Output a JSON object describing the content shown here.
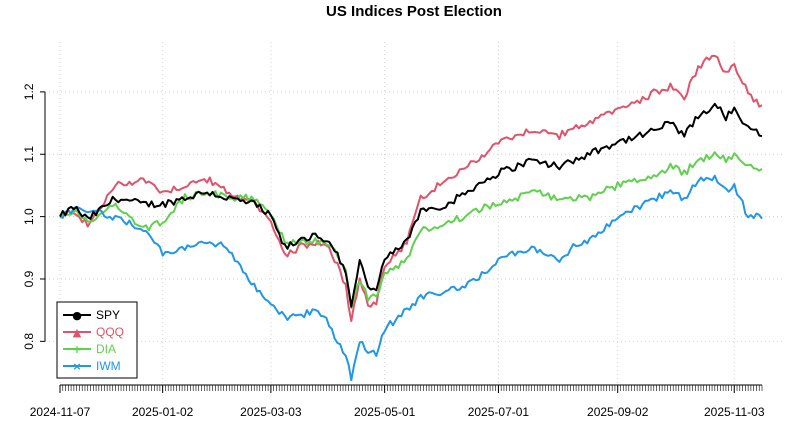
{
  "chart_data": {
    "type": "line",
    "title": "US Indices Post Election",
    "xlabel": "",
    "ylabel": "",
    "ylim": [
      0.73,
      1.28
    ],
    "yticks": [
      "0.8",
      "0.9",
      "1.0",
      "1.1",
      "1.2"
    ],
    "ytick_values": [
      0.8,
      0.9,
      1.0,
      1.1,
      1.2
    ],
    "xticks": [
      "2024-11-07",
      "2025-01-02",
      "2025-03-03",
      "2025-05-01",
      "2025-07-01",
      "2025-09-02",
      "2025-11-03"
    ],
    "xtick_index": [
      0,
      37,
      76,
      117,
      158,
      201,
      243
    ],
    "n_points": 254,
    "grid": true,
    "legend_position": "bottom-left",
    "series": [
      {
        "name": "SPY",
        "color": "#000000",
        "marker": "●",
        "anchors": [
          [
            0,
            1.0
          ],
          [
            5,
            1.015
          ],
          [
            10,
            0.995
          ],
          [
            20,
            1.03
          ],
          [
            30,
            1.02
          ],
          [
            37,
            1.02
          ],
          [
            45,
            1.03
          ],
          [
            53,
            1.04
          ],
          [
            60,
            1.03
          ],
          [
            70,
            1.02
          ],
          [
            76,
            1.0
          ],
          [
            81,
            0.95
          ],
          [
            86,
            0.96
          ],
          [
            92,
            0.97
          ],
          [
            97,
            0.96
          ],
          [
            100,
            0.94
          ],
          [
            103,
            0.91
          ],
          [
            105,
            0.86
          ],
          [
            108,
            0.93
          ],
          [
            111,
            0.89
          ],
          [
            114,
            0.88
          ],
          [
            117,
            0.93
          ],
          [
            125,
            0.96
          ],
          [
            130,
            1.01
          ],
          [
            140,
            1.02
          ],
          [
            150,
            1.05
          ],
          [
            158,
            1.07
          ],
          [
            170,
            1.09
          ],
          [
            180,
            1.08
          ],
          [
            185,
            1.09
          ],
          [
            190,
            1.1
          ],
          [
            201,
            1.12
          ],
          [
            210,
            1.13
          ],
          [
            220,
            1.15
          ],
          [
            225,
            1.13
          ],
          [
            230,
            1.16
          ],
          [
            236,
            1.18
          ],
          [
            240,
            1.16
          ],
          [
            243,
            1.17
          ],
          [
            248,
            1.14
          ],
          [
            254,
            1.13
          ]
        ]
      },
      {
        "name": "QQQ",
        "color": "#df536b",
        "marker": "▲",
        "anchors": [
          [
            0,
            1.0
          ],
          [
            5,
            1.01
          ],
          [
            10,
            0.985
          ],
          [
            20,
            1.05
          ],
          [
            30,
            1.06
          ],
          [
            37,
            1.04
          ],
          [
            45,
            1.05
          ],
          [
            53,
            1.06
          ],
          [
            60,
            1.04
          ],
          [
            70,
            1.02
          ],
          [
            76,
            0.99
          ],
          [
            81,
            0.94
          ],
          [
            86,
            0.95
          ],
          [
            92,
            0.96
          ],
          [
            97,
            0.95
          ],
          [
            100,
            0.92
          ],
          [
            103,
            0.89
          ],
          [
            105,
            0.83
          ],
          [
            108,
            0.9
          ],
          [
            111,
            0.86
          ],
          [
            114,
            0.86
          ],
          [
            117,
            0.92
          ],
          [
            125,
            0.96
          ],
          [
            130,
            1.03
          ],
          [
            140,
            1.06
          ],
          [
            150,
            1.09
          ],
          [
            158,
            1.12
          ],
          [
            170,
            1.14
          ],
          [
            180,
            1.13
          ],
          [
            185,
            1.14
          ],
          [
            190,
            1.15
          ],
          [
            201,
            1.17
          ],
          [
            210,
            1.19
          ],
          [
            220,
            1.21
          ],
          [
            225,
            1.19
          ],
          [
            230,
            1.24
          ],
          [
            236,
            1.26
          ],
          [
            240,
            1.23
          ],
          [
            243,
            1.24
          ],
          [
            248,
            1.2
          ],
          [
            254,
            1.17
          ]
        ]
      },
      {
        "name": "DIA",
        "color": "#61d04f",
        "marker": "+",
        "anchors": [
          [
            0,
            1.0
          ],
          [
            5,
            1.01
          ],
          [
            10,
            0.99
          ],
          [
            20,
            1.02
          ],
          [
            30,
            0.98
          ],
          [
            37,
            0.99
          ],
          [
            45,
            1.03
          ],
          [
            53,
            1.04
          ],
          [
            60,
            1.03
          ],
          [
            70,
            1.03
          ],
          [
            76,
            1.0
          ],
          [
            81,
            0.96
          ],
          [
            86,
            0.96
          ],
          [
            92,
            0.96
          ],
          [
            97,
            0.95
          ],
          [
            100,
            0.94
          ],
          [
            103,
            0.91
          ],
          [
            105,
            0.85
          ],
          [
            108,
            0.9
          ],
          [
            111,
            0.87
          ],
          [
            114,
            0.87
          ],
          [
            117,
            0.91
          ],
          [
            125,
            0.93
          ],
          [
            130,
            0.98
          ],
          [
            140,
            0.99
          ],
          [
            150,
            1.01
          ],
          [
            158,
            1.02
          ],
          [
            170,
            1.04
          ],
          [
            180,
            1.03
          ],
          [
            185,
            1.03
          ],
          [
            190,
            1.03
          ],
          [
            201,
            1.05
          ],
          [
            210,
            1.06
          ],
          [
            220,
            1.08
          ],
          [
            225,
            1.07
          ],
          [
            230,
            1.09
          ],
          [
            236,
            1.1
          ],
          [
            240,
            1.09
          ],
          [
            243,
            1.1
          ],
          [
            248,
            1.08
          ],
          [
            254,
            1.07
          ]
        ]
      },
      {
        "name": "IWM",
        "color": "#2297e6",
        "marker": "×",
        "anchors": [
          [
            0,
            1.0
          ],
          [
            5,
            1.01
          ],
          [
            10,
            1.01
          ],
          [
            20,
            1.0
          ],
          [
            30,
            0.98
          ],
          [
            37,
            0.94
          ],
          [
            45,
            0.95
          ],
          [
            53,
            0.96
          ],
          [
            60,
            0.95
          ],
          [
            70,
            0.89
          ],
          [
            76,
            0.86
          ],
          [
            81,
            0.84
          ],
          [
            86,
            0.84
          ],
          [
            92,
            0.85
          ],
          [
            97,
            0.83
          ],
          [
            100,
            0.8
          ],
          [
            103,
            0.78
          ],
          [
            105,
            0.74
          ],
          [
            108,
            0.8
          ],
          [
            111,
            0.78
          ],
          [
            114,
            0.78
          ],
          [
            117,
            0.82
          ],
          [
            125,
            0.85
          ],
          [
            130,
            0.87
          ],
          [
            140,
            0.88
          ],
          [
            150,
            0.9
          ],
          [
            158,
            0.93
          ],
          [
            170,
            0.95
          ],
          [
            180,
            0.93
          ],
          [
            185,
            0.95
          ],
          [
            190,
            0.96
          ],
          [
            201,
            1.0
          ],
          [
            210,
            1.02
          ],
          [
            220,
            1.04
          ],
          [
            225,
            1.03
          ],
          [
            230,
            1.06
          ],
          [
            236,
            1.06
          ],
          [
            240,
            1.04
          ],
          [
            243,
            1.05
          ],
          [
            248,
            1.0
          ],
          [
            254,
            1.0
          ]
        ]
      }
    ]
  }
}
